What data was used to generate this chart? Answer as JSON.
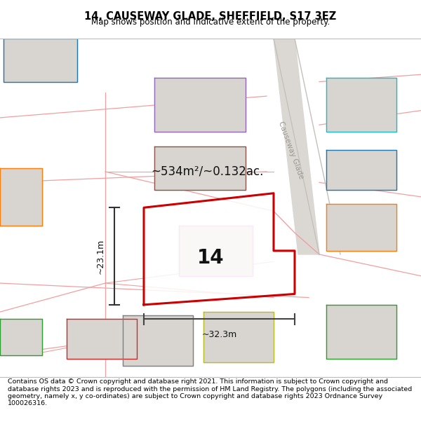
{
  "title_line1": "14, CAUSEWAY GLADE, SHEFFIELD, S17 3EZ",
  "title_line2": "Map shows position and indicative extent of the property.",
  "footer_text": "Contains OS data © Crown copyright and database right 2021. This information is subject to Crown copyright and database rights 2023 and is reproduced with the permission of HM Land Registry. The polygons (including the associated geometry, namely x, y co-ordinates) are subject to Crown copyright and database rights 2023 Ordnance Survey 100026316.",
  "map_bg": "#f9f8f6",
  "title_bg": "#ffffff",
  "footer_bg": "#ffffff",
  "main_plot_color": "#cc0000",
  "pink_line_color": "#f0a0a0",
  "road_fill_color": "#dbd8d4",
  "building_fill_color": "#d8d5d0",
  "area_text": "~534m²/~0.132ac.",
  "plot_number": "14",
  "dim_width": "~32.3m",
  "dim_height": "~23.1m",
  "street_label": "Causeway Glade",
  "title_fontsize": 10.5,
  "subtitle_fontsize": 8.5,
  "footer_fontsize": 6.8
}
